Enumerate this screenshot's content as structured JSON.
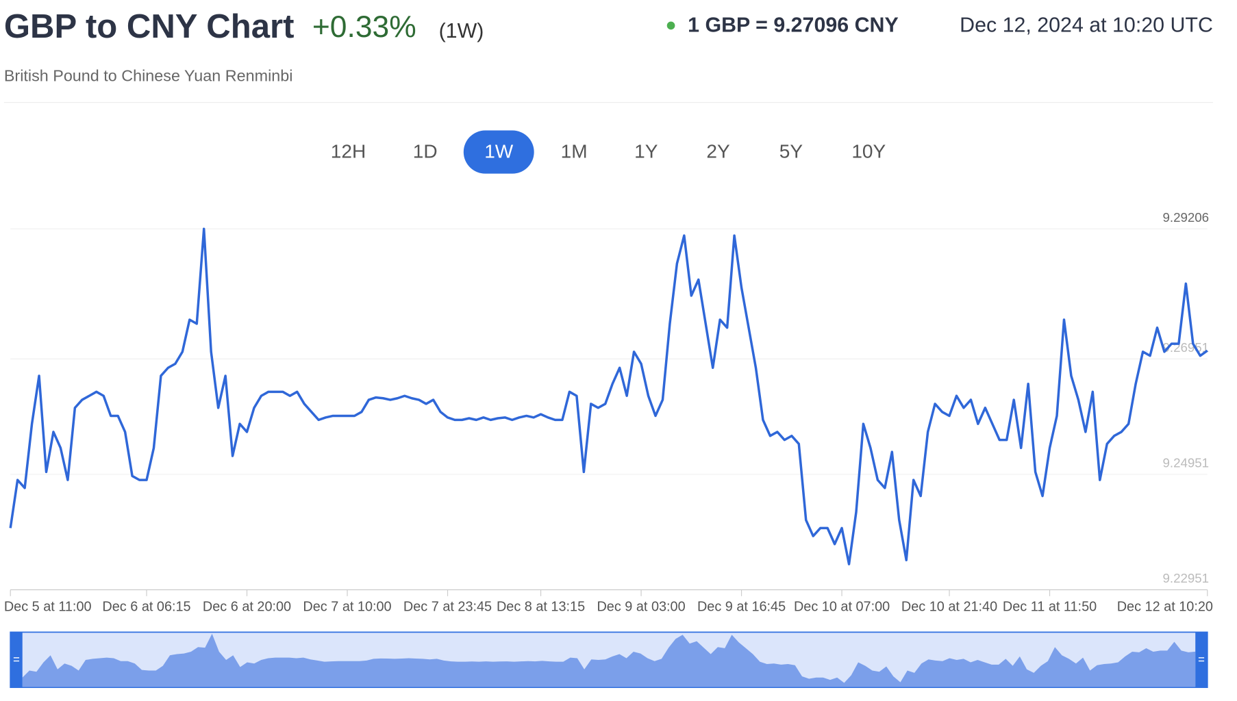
{
  "header": {
    "title": "GBP to CNY Chart",
    "change": "+0.33%",
    "period": "(1W)",
    "rate": "1 GBP = 9.27096 CNY",
    "timestamp": "Dec 12, 2024 at 10:20 UTC",
    "subtitle": "British Pound to Chinese Yuan Renminbi"
  },
  "range_buttons": {
    "options": [
      "12H",
      "1D",
      "1W",
      "1M",
      "1Y",
      "2Y",
      "5Y",
      "10Y"
    ],
    "selected": "1W"
  },
  "chart_data": {
    "type": "line",
    "color": "#2f67d8",
    "categories": [
      "Dec 5 at 11:00",
      null,
      null,
      null,
      null,
      null,
      null,
      null,
      null,
      null,
      null,
      null,
      null,
      null,
      null,
      null,
      null,
      null,
      null,
      "Dec 6 at 06:15",
      null,
      null,
      null,
      null,
      null,
      null,
      null,
      null,
      null,
      null,
      null,
      null,
      null,
      "Dec 6 at 20:00",
      null,
      null,
      null,
      null,
      null,
      null,
      null,
      null,
      null,
      null,
      null,
      null,
      null,
      "Dec 7 at 10:00",
      null,
      null,
      null,
      null,
      null,
      null,
      null,
      null,
      null,
      null,
      null,
      null,
      null,
      "Dec 7 at 23:45",
      null,
      null,
      null,
      null,
      null,
      null,
      null,
      null,
      null,
      null,
      null,
      null,
      "Dec 8 at 13:15",
      null,
      null,
      null,
      null,
      null,
      null,
      null,
      null,
      null,
      null,
      null,
      null,
      null,
      "Dec 9 at 03:00",
      null,
      null,
      null,
      null,
      null,
      null,
      null,
      null,
      null,
      null,
      null,
      null,
      null,
      "Dec 9 at 16:45",
      null,
      null,
      null,
      null,
      null,
      null,
      null,
      null,
      null,
      null,
      null,
      null,
      null,
      "Dec 10 at 07:00",
      null,
      null,
      null,
      null,
      null,
      null,
      null,
      null,
      null,
      null,
      null,
      null,
      null,
      null,
      "Dec 10 at 21:40",
      null,
      null,
      null,
      null,
      null,
      null,
      null,
      null,
      null,
      null,
      null,
      null,
      null,
      "Dec 11 at 11:50",
      null,
      null,
      null,
      null,
      null,
      null,
      null,
      null,
      null,
      null,
      null,
      null,
      null,
      null,
      null,
      null,
      null,
      null,
      null,
      null,
      null,
      "Dec 12 at 10:20"
    ],
    "values": [
      9.2402,
      9.24854,
      9.24715,
      9.25826,
      9.26659,
      9.24993,
      9.25687,
      9.25409,
      9.24854,
      9.26104,
      9.26243,
      9.26312,
      9.26382,
      9.26312,
      9.25965,
      9.25965,
      9.25687,
      9.24923,
      9.24854,
      9.24854,
      9.25409,
      9.26659,
      9.26798,
      9.26868,
      9.27076,
      9.27632,
      9.27562,
      9.29206,
      9.27076,
      9.26104,
      9.26659,
      9.2527,
      9.25826,
      9.25687,
      9.26104,
      9.26312,
      9.26382,
      9.26382,
      9.26382,
      9.26312,
      9.26382,
      9.26173,
      9.26034,
      9.25895,
      9.25937,
      9.25965,
      9.25965,
      9.25965,
      9.25965,
      9.26034,
      9.26243,
      9.26284,
      9.2627,
      9.26243,
      9.2627,
      9.26312,
      9.2627,
      9.26243,
      9.26173,
      9.26243,
      9.26034,
      9.25937,
      9.25895,
      9.25895,
      9.25923,
      9.25895,
      9.25937,
      9.25895,
      9.25923,
      9.25937,
      9.25895,
      9.25937,
      9.25965,
      9.25937,
      9.25993,
      9.25937,
      9.25895,
      9.25895,
      9.26382,
      9.26312,
      9.24993,
      9.26173,
      9.26104,
      9.26173,
      9.2652,
      9.26798,
      9.26312,
      9.27076,
      9.26868,
      9.26312,
      9.25965,
      9.26243,
      9.27562,
      9.28604,
      9.2909,
      9.28048,
      9.28326,
      9.27562,
      9.26798,
      9.27632,
      9.27493,
      9.2909,
      9.28187,
      9.27493,
      9.26798,
      9.25895,
      9.25618,
      9.25687,
      9.25548,
      9.25618,
      9.25479,
      9.24159,
      9.23882,
      9.2402,
      9.2402,
      9.23743,
      9.2402,
      9.23395,
      9.24298,
      9.25826,
      9.25409,
      9.24854,
      9.24715,
      9.2534,
      9.24159,
      9.23465,
      9.24854,
      9.24576,
      9.25687,
      9.26173,
      9.26034,
      9.25965,
      9.26312,
      9.26104,
      9.26243,
      9.25826,
      9.26104,
      9.25826,
      9.25548,
      9.25548,
      9.26243,
      9.25409,
      9.2652,
      9.24993,
      9.24576,
      9.25409,
      9.25965,
      9.27632,
      9.26659,
      9.26243,
      9.25687,
      9.26382,
      9.24854,
      9.25479,
      9.25618,
      9.25687,
      9.25826,
      9.2652,
      9.27076,
      9.27007,
      9.27493,
      9.27076,
      9.27215,
      9.27215,
      9.28257,
      9.27215,
      9.27007,
      9.27096
    ],
    "ylim": [
      9.22951,
      9.29206
    ],
    "yticks": [
      9.22951,
      9.24951,
      9.26951,
      9.29206
    ],
    "grid": true
  }
}
